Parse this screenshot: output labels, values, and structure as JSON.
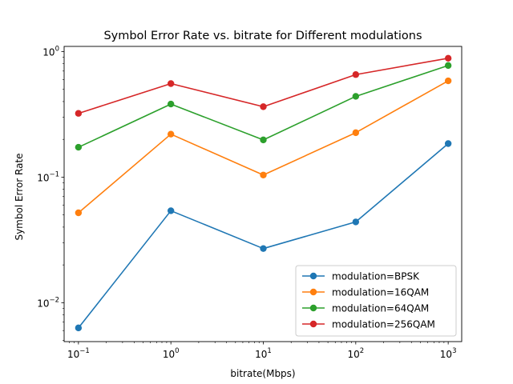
{
  "chart_data": {
    "type": "line",
    "title": "Symbol Error Rate vs. bitrate for Different modulations",
    "xlabel": "bitrate(Mbps)",
    "ylabel": "Symbol Error Rate",
    "xscale": "log",
    "yscale": "log",
    "xlim": [
      0.07,
      1400
    ],
    "ylim": [
      0.0049,
      1.1
    ],
    "x": [
      0.1,
      1,
      10,
      100,
      1000
    ],
    "xtick_labels": [
      {
        "base": "10",
        "exp": "−1"
      },
      {
        "base": "10",
        "exp": "0"
      },
      {
        "base": "10",
        "exp": "1"
      },
      {
        "base": "10",
        "exp": "2"
      },
      {
        "base": "10",
        "exp": "3"
      }
    ],
    "yticks": [
      0.01,
      0.1,
      1
    ],
    "ytick_labels": [
      {
        "base": "10",
        "exp": "−2"
      },
      {
        "base": "10",
        "exp": "−1"
      },
      {
        "base": "10",
        "exp": "0"
      }
    ],
    "legend_position": "lower-right",
    "grid": false,
    "series": [
      {
        "name": "modulation=BPSK",
        "color": "#1f77b4",
        "values": [
          0.0063,
          0.054,
          0.027,
          0.044,
          0.185
        ]
      },
      {
        "name": "modulation=16QAM",
        "color": "#ff7f0e",
        "values": [
          0.052,
          0.22,
          0.104,
          0.226,
          0.585
        ]
      },
      {
        "name": "modulation=64QAM",
        "color": "#2ca02c",
        "values": [
          0.173,
          0.382,
          0.198,
          0.44,
          0.775
        ]
      },
      {
        "name": "modulation=256QAM",
        "color": "#d62728",
        "values": [
          0.322,
          0.556,
          0.364,
          0.656,
          0.885
        ]
      }
    ]
  }
}
